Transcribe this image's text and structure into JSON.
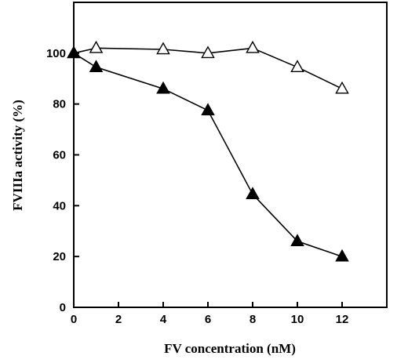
{
  "chart_data": {
    "type": "line",
    "xlabel": "FV concentration (nM)",
    "ylabel": "FVIIIa activity (%)",
    "xlim": [
      0,
      14
    ],
    "ylim": [
      0,
      120
    ],
    "x_ticks": [
      0,
      2,
      4,
      6,
      8,
      10,
      12
    ],
    "y_ticks": [
      0,
      20,
      40,
      60,
      80,
      100
    ],
    "x_tick_labels": [
      "0",
      "2",
      "4",
      "6",
      "8",
      "10",
      "12"
    ],
    "y_tick_labels": [
      "0",
      "20",
      "40",
      "60",
      "80",
      "100"
    ],
    "grid": false,
    "series": [
      {
        "marker": "open-triangle",
        "color": "#000000",
        "x": [
          0,
          1,
          4,
          6,
          8,
          10,
          12
        ],
        "y": [
          100,
          102,
          101.5,
          100,
          102,
          94.5,
          86
        ]
      },
      {
        "marker": "filled-triangle",
        "color": "#000000",
        "x": [
          0,
          1,
          4,
          6,
          8,
          10,
          12
        ],
        "y": [
          100,
          94.5,
          86,
          77.5,
          44.5,
          26,
          20
        ]
      }
    ]
  }
}
